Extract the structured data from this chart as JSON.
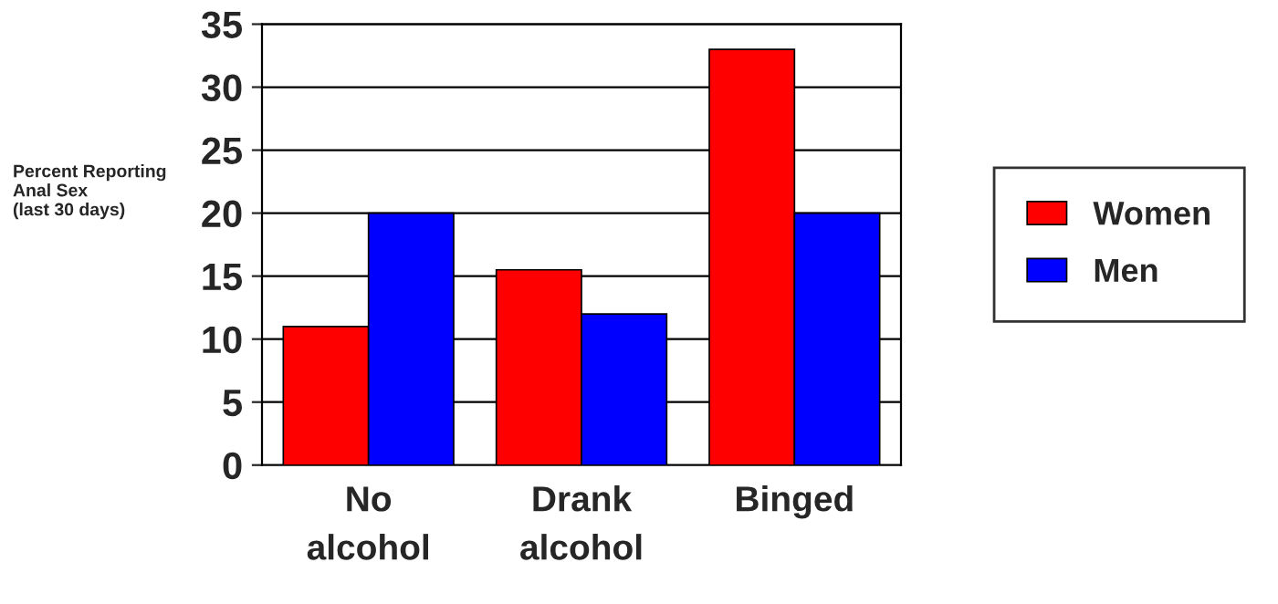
{
  "chart_data": {
    "type": "bar",
    "ylabel": "Percent Reporting\nAnal Sex\n(last 30 days)",
    "categories": [
      "No\nalcohol",
      "Drank\nalcohol",
      "Binged"
    ],
    "series": [
      {
        "name": "Women",
        "color": "#ff0000",
        "values": [
          11,
          15.5,
          33
        ]
      },
      {
        "name": "Men",
        "color": "#0000ff",
        "values": [
          20,
          12,
          20
        ]
      }
    ],
    "ylim": [
      0,
      35
    ],
    "yticks": [
      0,
      5,
      10,
      15,
      20,
      25,
      30,
      35
    ],
    "grid": "y",
    "legend": "right"
  }
}
